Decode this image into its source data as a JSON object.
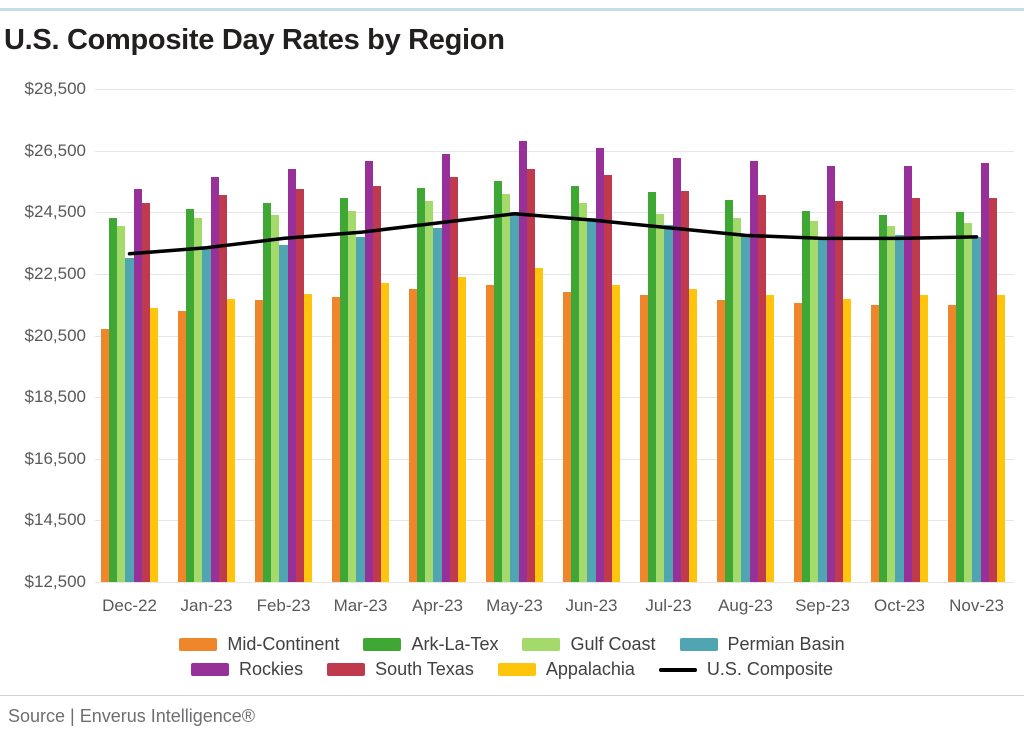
{
  "page": {
    "source_text": "Source | Enverus Intelligence®",
    "accent_color": "#BFDEE9"
  },
  "chart_data": {
    "type": "bar",
    "title": "U.S. Composite Day Rates by Region",
    "categories": [
      "Dec-22",
      "Jan-23",
      "Feb-23",
      "Mar-23",
      "Apr-23",
      "May-23",
      "Jun-23",
      "Jul-23",
      "Aug-23",
      "Sep-23",
      "Oct-23",
      "Nov-23"
    ],
    "series": [
      {
        "name": "Mid-Continent",
        "type": "bar",
        "color": "#F0862B",
        "values": [
          20700,
          21300,
          21650,
          21750,
          22000,
          22150,
          21900,
          21800,
          21650,
          21550,
          21500,
          21500
        ]
      },
      {
        "name": "Ark-La-Tex",
        "type": "bar",
        "color": "#3FA835",
        "values": [
          24300,
          24600,
          24800,
          24950,
          25300,
          25500,
          25350,
          25150,
          24900,
          24550,
          24400,
          24500
        ]
      },
      {
        "name": "Gulf Coast",
        "type": "bar",
        "color": "#A4DA6B",
        "values": [
          24050,
          24300,
          24400,
          24550,
          24850,
          25100,
          24800,
          24450,
          24300,
          24200,
          24050,
          24150
        ]
      },
      {
        "name": "Permian Basin",
        "type": "bar",
        "color": "#4FA5B1",
        "values": [
          23000,
          23350,
          23450,
          23700,
          24000,
          24500,
          24300,
          24100,
          23750,
          23700,
          23750,
          23700
        ]
      },
      {
        "name": "Rockies",
        "type": "bar",
        "color": "#98309A",
        "values": [
          25250,
          25650,
          25900,
          26150,
          26400,
          26800,
          26600,
          26250,
          26150,
          26000,
          26000,
          26100
        ]
      },
      {
        "name": "South Texas",
        "type": "bar",
        "color": "#C03A4E",
        "values": [
          24800,
          25050,
          25250,
          25350,
          25650,
          25900,
          25700,
          25200,
          25050,
          24850,
          24950,
          24950
        ]
      },
      {
        "name": "Appalachia",
        "type": "bar",
        "color": "#FFC50D",
        "values": [
          21400,
          21700,
          21850,
          22200,
          22400,
          22700,
          22150,
          22000,
          21800,
          21700,
          21800,
          21800
        ]
      },
      {
        "name": "U.S. Composite",
        "type": "line",
        "color": "#000000",
        "values": [
          23150,
          23350,
          23650,
          23850,
          24150,
          24450,
          24250,
          24000,
          23750,
          23650,
          23650,
          23700
        ]
      }
    ],
    "ylim": [
      12500,
      28500
    ],
    "yticks": [
      12500,
      14500,
      16500,
      18500,
      20500,
      22500,
      24500,
      26500,
      28500
    ],
    "ytick_labels": [
      "$12,500",
      "$14,500",
      "$16,500",
      "$18,500",
      "$20,500",
      "$22,500",
      "$24,500",
      "$26,500",
      "$28,500"
    ],
    "grid": true,
    "legend_position": "bottom"
  }
}
